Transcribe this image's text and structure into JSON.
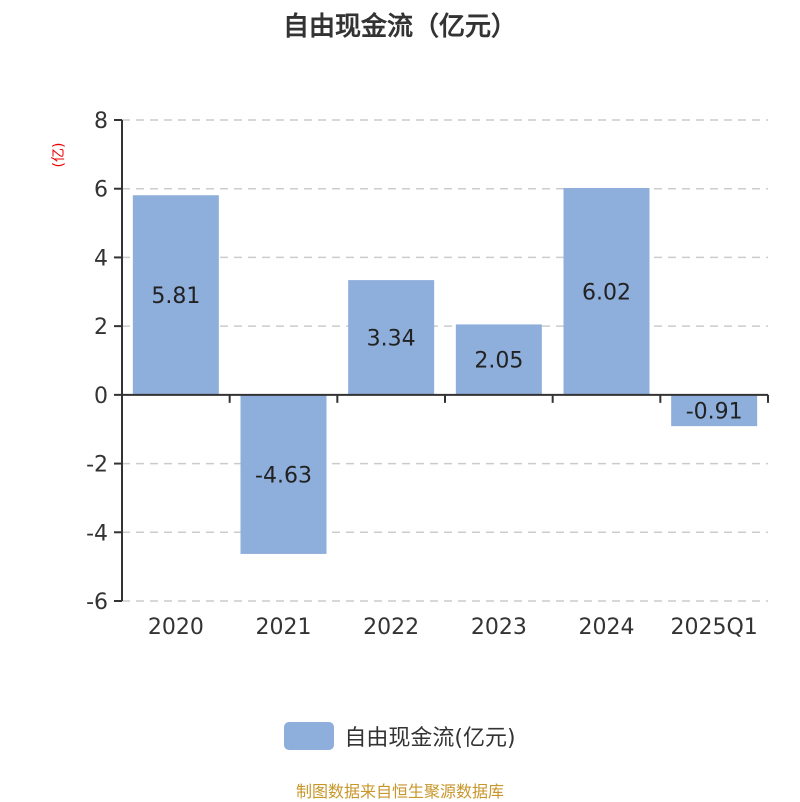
{
  "chart_data": {
    "type": "bar",
    "title": "自由现金流（亿元）",
    "ylabel": "(亿)",
    "categories": [
      "2020",
      "2021",
      "2022",
      "2023",
      "2024",
      "2025Q1"
    ],
    "series": [
      {
        "name": "自由现金流(亿元)",
        "values": [
          5.81,
          -4.63,
          3.34,
          2.05,
          6.02,
          -0.91
        ]
      }
    ],
    "value_labels": [
      "5.81",
      "-4.63",
      "3.34",
      "2.05",
      "6.02",
      "-0.91"
    ],
    "ylim": [
      -6,
      8
    ],
    "yticks": [
      -6,
      -4,
      -2,
      0,
      2,
      4,
      6,
      8
    ],
    "grid": true,
    "legend_position": "bottom",
    "bar_color": "#8eaedb"
  },
  "source": "制图数据来自恒生聚源数据库"
}
